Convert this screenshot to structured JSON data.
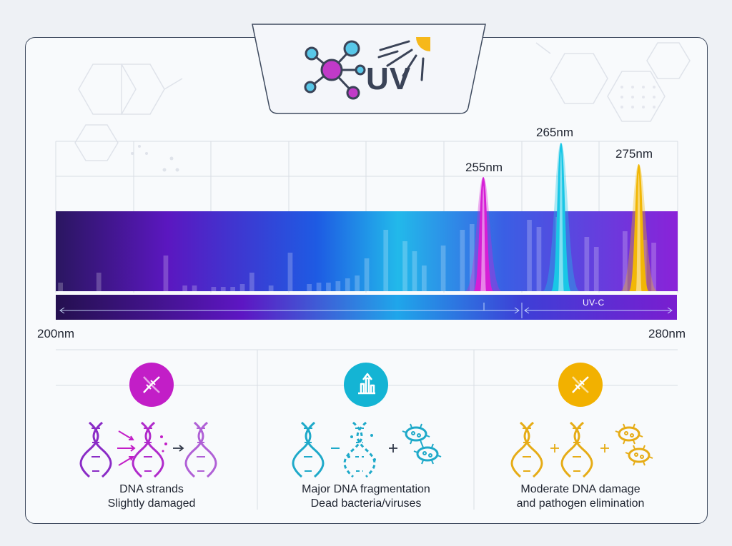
{
  "header": {
    "uv_text": "UV",
    "icons": [
      "molecule-icon",
      "sun-icon"
    ]
  },
  "chart_data": {
    "type": "spectrum",
    "x_axis": {
      "min_label": "200nm",
      "max_label": "280nm",
      "range": [
        200,
        280
      ],
      "unit": "nm"
    },
    "band_label": "UV-C",
    "peaks": [
      {
        "label": "255nm",
        "wavelength": 255,
        "color": "#d61fd6"
      },
      {
        "label": "265nm",
        "wavelength": 265,
        "color": "#19c7e6"
      },
      {
        "label": "275nm",
        "wavelength": 275,
        "color": "#f2b705"
      }
    ],
    "gradient_colors": [
      "#2a1660",
      "#6a18c9",
      "#1e5be3",
      "#22b9ea",
      "#9a2fe0"
    ]
  },
  "panels": [
    {
      "color": "#c21ec7",
      "icon": "dna-icon",
      "caption_line1": "DNA strands",
      "caption_line2": "Slightly damaged"
    },
    {
      "color": "#14b4d4",
      "icon": "bar-arrow-icon",
      "caption_line1": "Major DNA fragmentation",
      "caption_line2": "Dead bacteria/viruses"
    },
    {
      "color": "#f2b100",
      "icon": "dna-icon",
      "caption_line1": "Moderate DNA damage",
      "caption_line2": "and pathogen elimination"
    }
  ]
}
